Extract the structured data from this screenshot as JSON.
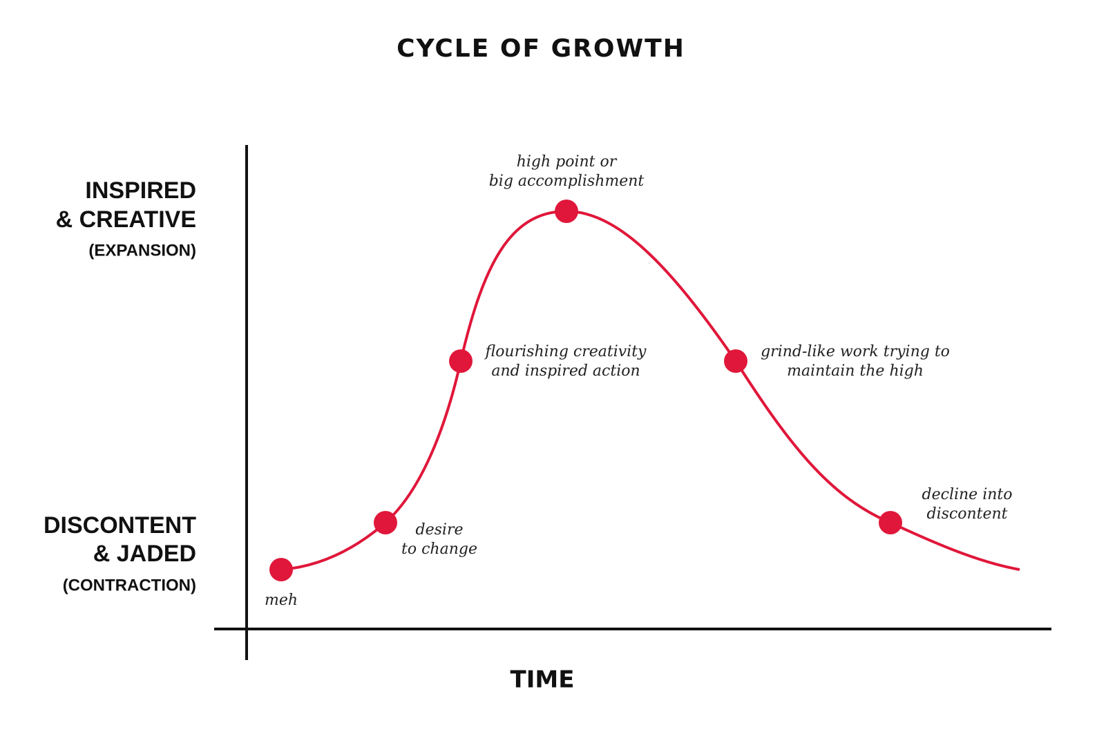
{
  "title": "CYCLE OF GROWTH",
  "y_axis": {
    "top": {
      "lines": [
        "INSPIRED",
        "& CREATIVE"
      ],
      "sub": "(EXPANSION)"
    },
    "bottom": {
      "lines": [
        "DISCONTENT",
        "& JADED"
      ],
      "sub": "(CONTRACTION)"
    }
  },
  "x_axis": {
    "label": "TIME"
  },
  "nodes": [
    {
      "label": [
        "meh"
      ]
    },
    {
      "label": [
        "desire",
        "to change"
      ]
    },
    {
      "label": [
        "flourishing creativity",
        "and inspired action"
      ]
    },
    {
      "label": [
        "high point or",
        "big accomplishment"
      ]
    },
    {
      "label": [
        "grind-like work trying to",
        "maintain the high"
      ]
    },
    {
      "label": [
        "decline into",
        "discontent"
      ]
    }
  ]
}
